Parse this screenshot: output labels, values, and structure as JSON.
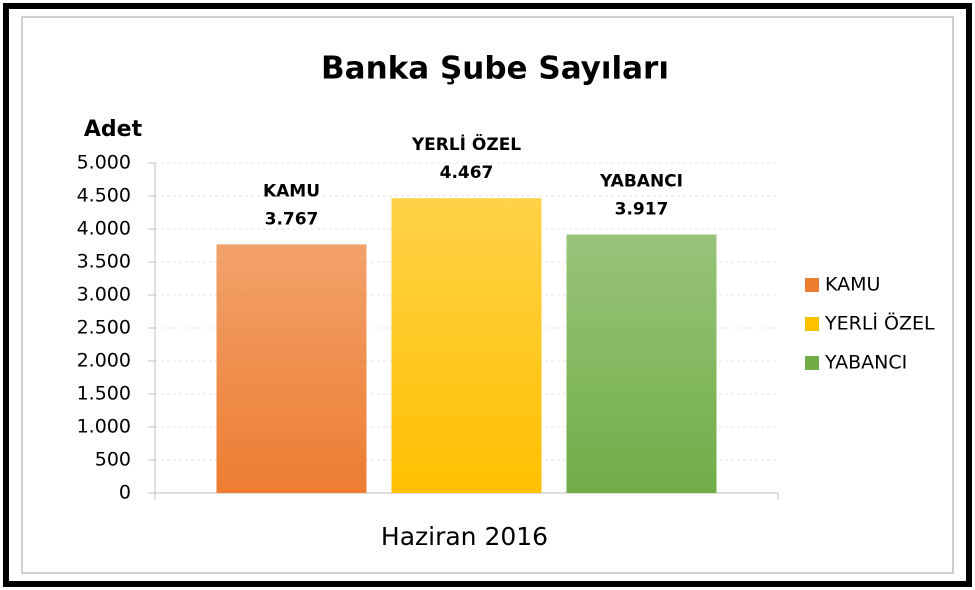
{
  "chart_data": {
    "type": "bar",
    "title": "Banka Şube Sayıları",
    "ylabel": "Adet",
    "categories": [
      "Haziran 2016"
    ],
    "series": [
      {
        "name": "KAMU",
        "color": "#ed7d31",
        "values": [
          3767
        ],
        "value_labels": [
          "3.767"
        ]
      },
      {
        "name": "YERLİ ÖZEL",
        "color": "#ffc000",
        "values": [
          4467
        ],
        "value_labels": [
          "4.467"
        ]
      },
      {
        "name": "YABANCI",
        "color": "#70ad47",
        "values": [
          3917
        ],
        "value_labels": [
          "3.917"
        ]
      }
    ],
    "ylim": [
      0,
      5000
    ],
    "yticks": [
      0,
      500,
      {
        "value": 1000,
        "label": "1.000"
      },
      {
        "value": 1500,
        "label": "1.500"
      },
      {
        "value": 2000,
        "label": "2.000"
      },
      {
        "value": 2500,
        "label": "2.500"
      },
      {
        "value": 3000,
        "label": "3.000"
      },
      {
        "value": 3500,
        "label": "3.500"
      },
      {
        "value": 4000,
        "label": "4.000"
      },
      {
        "value": 4500,
        "label": "4.500"
      },
      {
        "value": 5000,
        "label": "5.000"
      }
    ],
    "grid": true,
    "legend": "right"
  }
}
